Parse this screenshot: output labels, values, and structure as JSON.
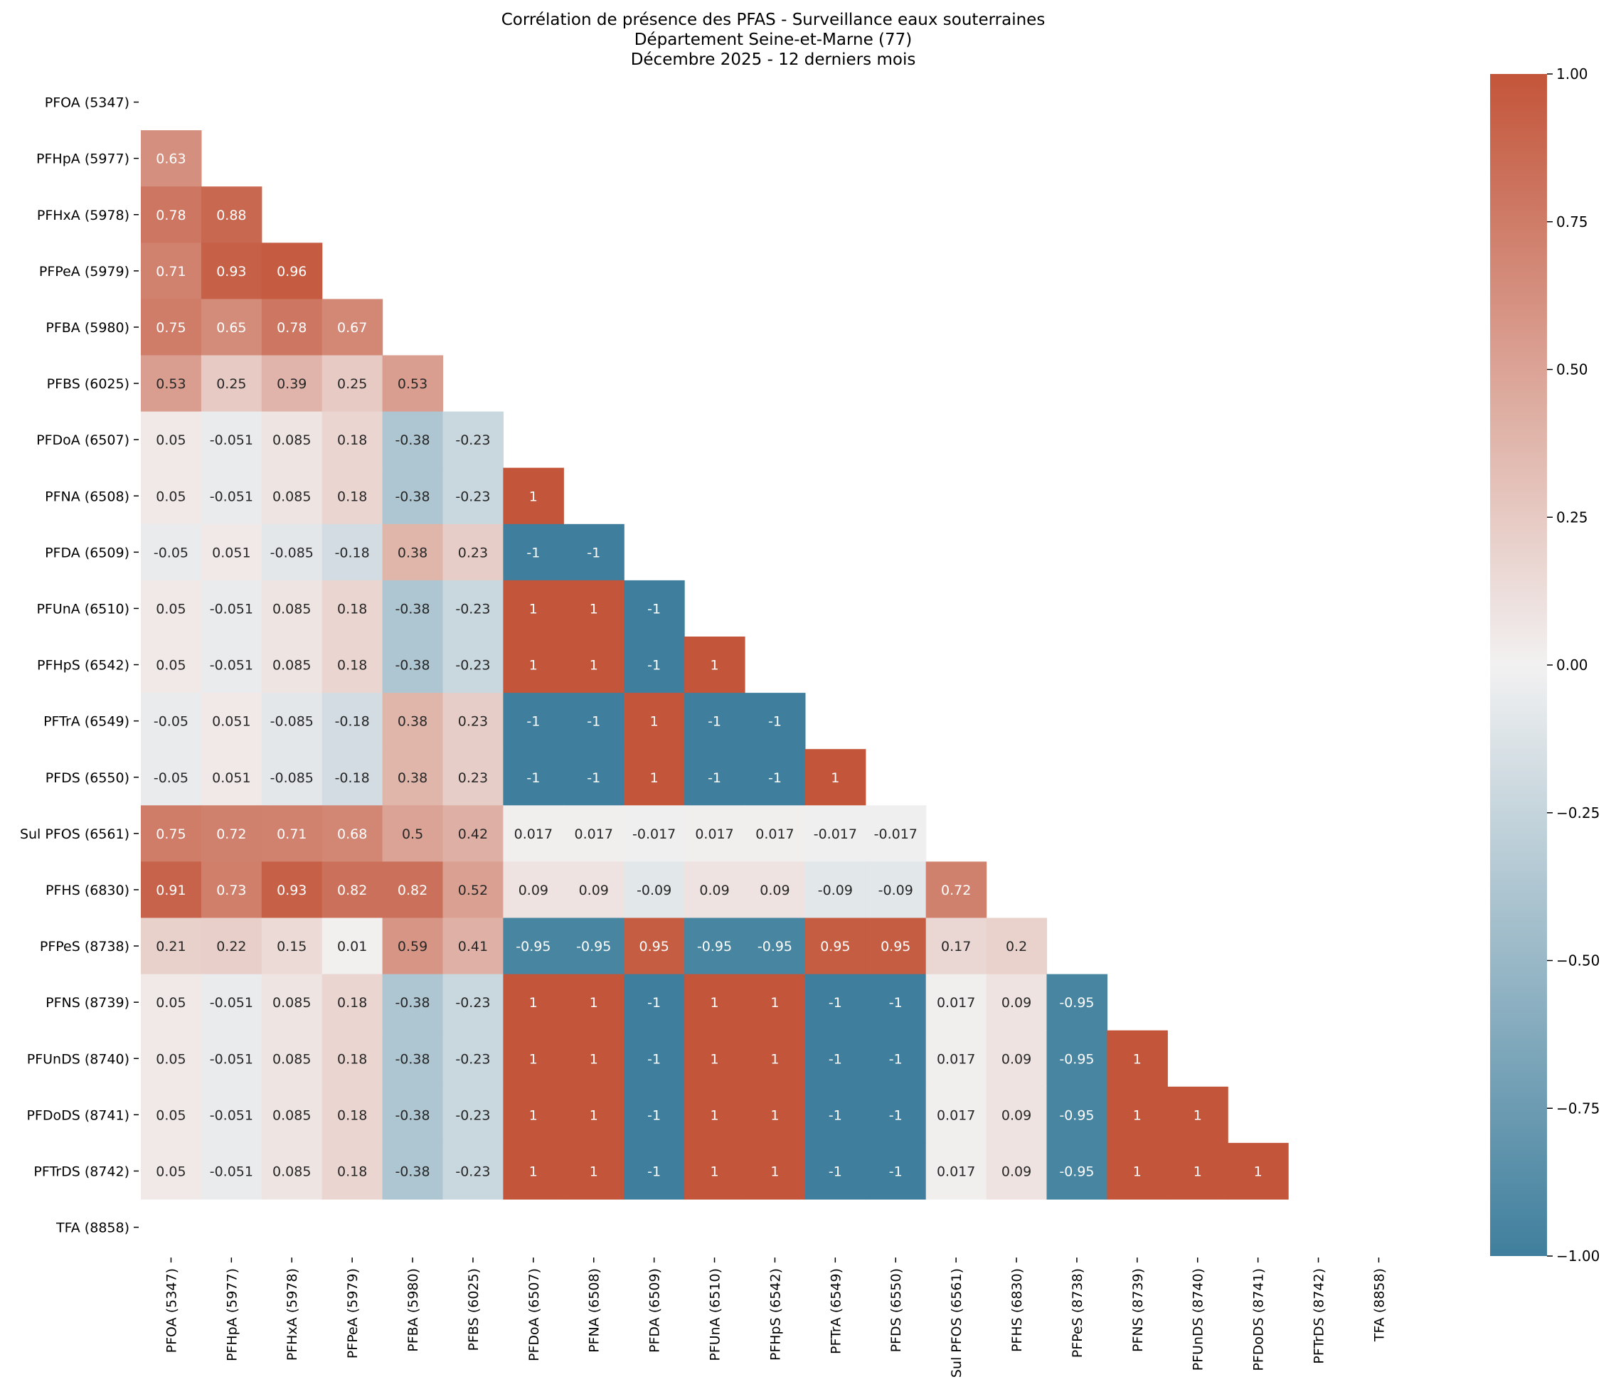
{
  "chart_data": {
    "type": "heatmap",
    "title": [
      "Corrélation de présence des PFAS - Surveillance eaux souterraines",
      "Département Seine-et-Marne (77)",
      "Décembre 2025 - 12 derniers mois"
    ],
    "labels": [
      "PFOA (5347)",
      "PFHpA (5977)",
      "PFHxA (5978)",
      "PFPeA (5979)",
      "PFBA (5980)",
      "PFBS (6025)",
      "PFDoA (6507)",
      "PFNA (6508)",
      "PFDA (6509)",
      "PFUnA (6510)",
      "PFHpS (6542)",
      "PFTrA (6549)",
      "PFDS (6550)",
      "Sul PFOS (6561)",
      "PFHS (6830)",
      "PFPeS (8738)",
      "PFNS (8739)",
      "PFUnDS (8740)",
      "PFDoDS (8741)",
      "PFTrDS (8742)",
      "TFA (8858)"
    ],
    "mask": "upper-triangle-including-diagonal",
    "lower_triangle": [
      [],
      [
        "0.63"
      ],
      [
        "0.78",
        "0.88"
      ],
      [
        "0.71",
        "0.93",
        "0.96"
      ],
      [
        "0.75",
        "0.65",
        "0.78",
        "0.67"
      ],
      [
        "0.53",
        "0.25",
        "0.39",
        "0.25",
        "0.53"
      ],
      [
        "0.05",
        "-0.051",
        "0.085",
        "0.18",
        "-0.38",
        "-0.23"
      ],
      [
        "0.05",
        "-0.051",
        "0.085",
        "0.18",
        "-0.38",
        "-0.23",
        "1"
      ],
      [
        "-0.05",
        "0.051",
        "-0.085",
        "-0.18",
        "0.38",
        "0.23",
        "-1",
        "-1"
      ],
      [
        "0.05",
        "-0.051",
        "0.085",
        "0.18",
        "-0.38",
        "-0.23",
        "1",
        "1",
        "-1"
      ],
      [
        "0.05",
        "-0.051",
        "0.085",
        "0.18",
        "-0.38",
        "-0.23",
        "1",
        "1",
        "-1",
        "1"
      ],
      [
        "-0.05",
        "0.051",
        "-0.085",
        "-0.18",
        "0.38",
        "0.23",
        "-1",
        "-1",
        "1",
        "-1",
        "-1"
      ],
      [
        "-0.05",
        "0.051",
        "-0.085",
        "-0.18",
        "0.38",
        "0.23",
        "-1",
        "-1",
        "1",
        "-1",
        "-1",
        "1"
      ],
      [
        "0.75",
        "0.72",
        "0.71",
        "0.68",
        "0.5",
        "0.42",
        "0.017",
        "0.017",
        "-0.017",
        "0.017",
        "0.017",
        "-0.017",
        "-0.017"
      ],
      [
        "0.91",
        "0.73",
        "0.93",
        "0.82",
        "0.82",
        "0.52",
        "0.09",
        "0.09",
        "-0.09",
        "0.09",
        "0.09",
        "-0.09",
        "-0.09",
        "0.72"
      ],
      [
        "0.21",
        "0.22",
        "0.15",
        "0.01",
        "0.59",
        "0.41",
        "-0.95",
        "-0.95",
        "0.95",
        "-0.95",
        "-0.95",
        "0.95",
        "0.95",
        "0.17",
        "0.2"
      ],
      [
        "0.05",
        "-0.051",
        "0.085",
        "0.18",
        "-0.38",
        "-0.23",
        "1",
        "1",
        "-1",
        "1",
        "1",
        "-1",
        "-1",
        "0.017",
        "0.09",
        "-0.95"
      ],
      [
        "0.05",
        "-0.051",
        "0.085",
        "0.18",
        "-0.38",
        "-0.23",
        "1",
        "1",
        "-1",
        "1",
        "1",
        "-1",
        "-1",
        "0.017",
        "0.09",
        "-0.95",
        "1"
      ],
      [
        "0.05",
        "-0.051",
        "0.085",
        "0.18",
        "-0.38",
        "-0.23",
        "1",
        "1",
        "-1",
        "1",
        "1",
        "-1",
        "-1",
        "0.017",
        "0.09",
        "-0.95",
        "1",
        "1"
      ],
      [
        "0.05",
        "-0.051",
        "0.085",
        "0.18",
        "-0.38",
        "-0.23",
        "1",
        "1",
        "-1",
        "1",
        "1",
        "-1",
        "-1",
        "0.017",
        "0.09",
        "-0.95",
        "1",
        "1",
        "1"
      ],
      []
    ],
    "colorbar": {
      "range": [
        -1,
        1
      ],
      "ticks": [
        "1.00",
        "0.75",
        "0.50",
        "0.25",
        "0.00",
        "−0.25",
        "−0.50",
        "−0.75",
        "−1.00"
      ],
      "colors": {
        "negative": "#3f7f9d",
        "neutral": "#f2f1f1",
        "positive": "#c3553a"
      }
    }
  }
}
